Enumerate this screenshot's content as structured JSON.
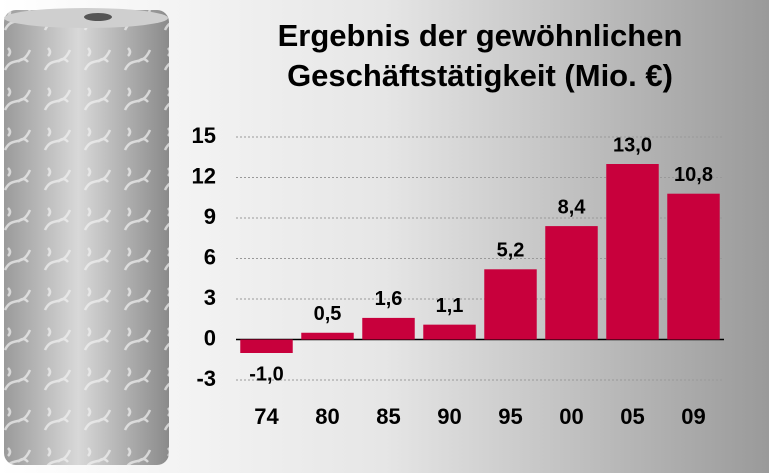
{
  "chart_data": {
    "type": "bar",
    "title": [
      "Ergebnis der gewöhnlichen",
      "Geschäftstätigkeit (Mio. €)"
    ],
    "categories": [
      "74",
      "80",
      "85",
      "90",
      "95",
      "00",
      "05",
      "09"
    ],
    "values": [
      -1.0,
      0.5,
      1.6,
      1.1,
      5.2,
      8.4,
      13.0,
      10.8
    ],
    "value_labels": [
      "-1,0",
      "0,5",
      "1,6",
      "1,1",
      "5,2",
      "8,4",
      "13,0",
      "10,8"
    ],
    "color": "#c8003c",
    "ylim": [
      -3,
      15
    ],
    "yticks": [
      -3,
      0,
      3,
      6,
      9,
      12,
      15
    ],
    "grid": true
  }
}
